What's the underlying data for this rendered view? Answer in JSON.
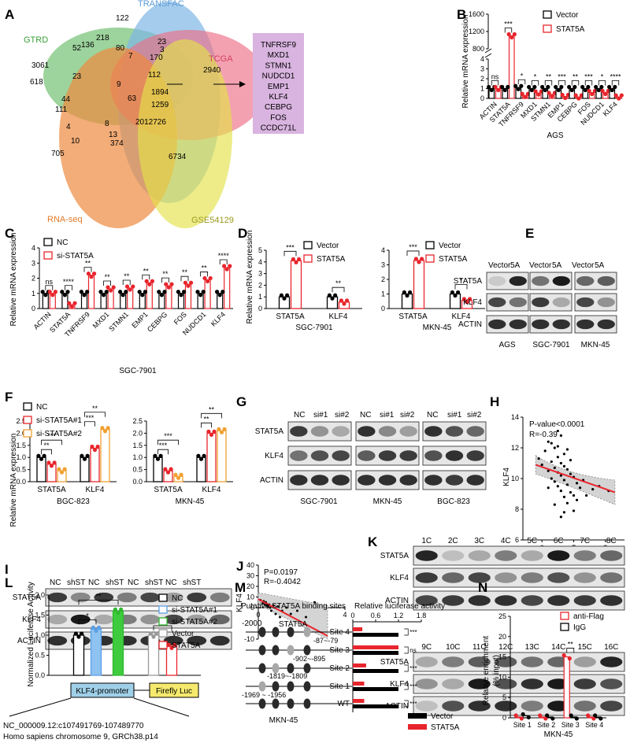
{
  "panels": {
    "A": {
      "letter": "A",
      "sets": [
        "TRANSFAC",
        "GTRD",
        "TCGA",
        "RNA-seq",
        "GSE54129"
      ],
      "numbers": [
        "122",
        "218",
        "23",
        "3",
        "52",
        "136",
        "80",
        "7",
        "170",
        "3061",
        "23",
        "2940",
        "618",
        "9",
        "112",
        "44",
        "1894",
        "111",
        "63",
        "1259",
        "4",
        "8",
        "2012726",
        "705",
        "10",
        "13",
        "374",
        "6734"
      ],
      "genes": [
        "TNFRSF9",
        "MXD1",
        "STMN1",
        "NUDCD1",
        "EMP1",
        "KLF4",
        "CEBPG",
        "FOS",
        "CCDC71L"
      ]
    },
    "B": {
      "letter": "B",
      "ylabel": "Relative mRNA expression",
      "yticks": [
        "0",
        "1",
        "2",
        "3",
        "4",
        "800",
        "1200",
        "1600"
      ],
      "legend": [
        "Vector",
        "STAT5A"
      ],
      "sigs": [
        "ns",
        "***",
        "*",
        "*",
        "**",
        "***",
        "**",
        "***",
        "*",
        "****"
      ],
      "cell": "AGS"
    },
    "C": {
      "letter": "C",
      "ylabel": "Relative mRNA expression",
      "yticks": [
        "0",
        "1",
        "2",
        "3",
        "4"
      ],
      "legend": [
        "NC",
        "si-STAT5A"
      ],
      "sigs": [
        "ns",
        "****",
        "**",
        "**",
        "**",
        "**",
        "**",
        "**",
        "**",
        "****"
      ],
      "cell": "SGC-7901"
    },
    "D": {
      "letter": "D",
      "ylabel": "Relative mRNA expression",
      "legend": [
        "Vector",
        "STAT5A"
      ],
      "left": {
        "cell": "SGC-7901",
        "yticks": [
          "0",
          "1",
          "2",
          "3",
          "4",
          "5"
        ],
        "sigs": [
          "***",
          "**"
        ]
      },
      "right": {
        "cell": "MKN-45",
        "yticks": [
          "0",
          "1",
          "2",
          "3",
          "4"
        ],
        "sigs": [
          "***",
          "*"
        ]
      }
    },
    "E": {
      "letter": "E",
      "headers": [
        "Vector",
        "5A",
        "Vector",
        "5A",
        "Vector",
        "5A"
      ],
      "rows": [
        "STAT5A",
        "KLF4",
        "ACTIN"
      ],
      "cells": [
        "AGS",
        "SGC-7901",
        "MKN-45"
      ]
    },
    "F": {
      "letter": "F",
      "ylabel": "Relative mRNA expression",
      "legend": [
        "NC",
        "si-STAT5A#1",
        "si-STAT5A#2"
      ],
      "left": {
        "cell": "BGC-823",
        "yticks": [
          "0.0",
          "0.5",
          "1.0",
          "1.5",
          "2.0",
          "2.5"
        ],
        "sigs": [
          "**",
          "***",
          "***",
          "**"
        ]
      },
      "right": {
        "cell": "MKN-45",
        "yticks": [
          "0.0",
          "0.5",
          "1.0",
          "1.5",
          "2.0",
          "2.5"
        ],
        "sigs": [
          "***",
          "***",
          "**",
          "**"
        ]
      }
    },
    "G": {
      "letter": "G",
      "headers": [
        "NC",
        "si#1",
        "si#2",
        "NC",
        "si#1",
        "si#2",
        "NC",
        "si#1",
        "si#2"
      ],
      "rows": [
        "STAT5A",
        "KLF4",
        "ACTIN"
      ],
      "cells": [
        "SGC-7901",
        "MKN-45",
        "BGC-823"
      ]
    },
    "H": {
      "letter": "H",
      "stat1": "P-value<0.0001",
      "stat2": "R=-0.39",
      "ylabel": "KLF4",
      "xlabel": "STAT5A",
      "xticks": [
        "6",
        "7",
        "8"
      ],
      "yticks": [
        "6",
        "8",
        "10",
        "12",
        "14"
      ]
    },
    "I": {
      "letter": "I",
      "headers": [
        "NC",
        "shST",
        "NC",
        "shST",
        "NC",
        "shST",
        "NC",
        "shST"
      ],
      "rows": [
        "STAT5A",
        "KLF4",
        "ACTIN"
      ]
    },
    "J": {
      "letter": "J",
      "stat1": "P=0.0197",
      "stat2": "R=-0.4042",
      "ylabel": "KLF4",
      "xlabel": "STAT5A",
      "yticks": [
        "40",
        "30",
        "20",
        "10",
        "0",
        "-10"
      ],
      "xticks": [
        "0",
        "1",
        "2",
        "3",
        "4"
      ]
    },
    "K": {
      "letter": "K",
      "headers_top": [
        "1C",
        "2C",
        "3C",
        "4C",
        "5C",
        "6C",
        "7C",
        "8C"
      ],
      "headers_bottom": [
        "9C",
        "10C",
        "11C",
        "12C",
        "13C",
        "14C",
        "15C",
        "16C"
      ],
      "rows": [
        "STAT5A",
        "KLF4",
        "ACTIN"
      ]
    },
    "L": {
      "letter": "L",
      "ylabel": "Normalized Luciferase Activity",
      "yticks": [
        "0.0",
        "0.5",
        "1.0",
        "1.5",
        "2.0"
      ],
      "legend": [
        "NC",
        "si-STAT5A#1",
        "si-STAT5A#2",
        "Vector",
        "STAT5A"
      ],
      "sigs": [
        "**",
        "*",
        "*"
      ],
      "promoter": "KLF4-promoter",
      "luc": "Firefly Luc",
      "locus": "NC_000009.12:c107491769-107489770",
      "assembly": "Homo sapiens chromosome 9, GRCh38.p14"
    },
    "M": {
      "letter": "M",
      "title_left": "Putative STAT5A binding sites",
      "title_right": "Relative luciferase activity",
      "start": "-2000",
      "sites": [
        "Site 4",
        "Site 3",
        "Site 2",
        "Site 1",
        "WT"
      ],
      "positions": [
        "-87~-79",
        "-902~-895",
        "-1819~-1809",
        "-1969 ~ -1956"
      ],
      "xticks": [
        "0",
        "0.6",
        "1.2",
        "1.8"
      ],
      "sigs": [
        "***",
        "ns",
        "***",
        "***",
        "***"
      ],
      "legend": [
        "Vector",
        "STAT5A"
      ],
      "cell": "MKN-45"
    },
    "N": {
      "letter": "N",
      "ylabel": "Relative enrichment\n(% input)",
      "yticks": [
        "0",
        "5",
        "10",
        "15",
        "20",
        "25"
      ],
      "legend": [
        "anti-Flag",
        "IgG"
      ],
      "sig": "**",
      "sites": [
        "Site 1",
        "Site 2",
        "Site 3",
        "Site 4"
      ],
      "cell": "MKN-45"
    }
  },
  "chart_data": [
    {
      "panel": "B",
      "type": "bar",
      "categories": [
        "ACTIN",
        "STAT5A",
        "TNFRSF9",
        "MXD1",
        "STMN1",
        "EMP1",
        "CEBPG",
        "FOS",
        "NUDCD1",
        "KLF4"
      ],
      "series": [
        {
          "name": "Vector",
          "values": [
            1,
            1,
            1.1,
            1,
            1,
            1,
            1,
            1,
            1,
            1
          ]
        },
        {
          "name": "STAT5A",
          "values": [
            1,
            1100,
            0.3,
            0.55,
            0.4,
            0.2,
            0.15,
            0.6,
            0.6,
            0.15
          ]
        }
      ],
      "ylabel": "Relative mRNA expression",
      "xlabel": "AGS",
      "axis_break": [
        4,
        800
      ]
    },
    {
      "panel": "C",
      "type": "bar",
      "categories": [
        "ACTIN",
        "STAT5A",
        "TNFRSF9",
        "MXD1",
        "STMN1",
        "EMP1",
        "CEBPG",
        "FOS",
        "NUDCD1",
        "KLF4"
      ],
      "series": [
        {
          "name": "NC",
          "values": [
            1,
            1,
            1,
            1,
            1,
            1,
            1,
            1,
            1,
            1
          ]
        },
        {
          "name": "si-STAT5A",
          "values": [
            1,
            0.25,
            2.2,
            1.3,
            1.35,
            1.7,
            1.5,
            1.6,
            1.9,
            2.7
          ]
        }
      ],
      "ylabel": "Relative mRNA expression",
      "xlabel": "SGC-7901",
      "ylim": [
        0,
        4
      ]
    },
    {
      "panel": "D-left",
      "type": "bar",
      "categories": [
        "STAT5A",
        "KLF4"
      ],
      "series": [
        {
          "name": "Vector",
          "values": [
            1,
            1
          ]
        },
        {
          "name": "STAT5A",
          "values": [
            4.1,
            0.55
          ]
        }
      ],
      "ylabel": "Relative mRNA expression",
      "xlabel": "SGC-7901",
      "ylim": [
        0,
        5
      ]
    },
    {
      "panel": "D-right",
      "type": "bar",
      "categories": [
        "STAT5A",
        "KLF4"
      ],
      "series": [
        {
          "name": "Vector",
          "values": [
            1,
            1
          ]
        },
        {
          "name": "STAT5A",
          "values": [
            3.3,
            0.55
          ]
        }
      ],
      "xlabel": "MKN-45",
      "ylim": [
        0,
        4
      ]
    },
    {
      "panel": "F-left",
      "type": "bar",
      "categories": [
        "STAT5A",
        "KLF4"
      ],
      "series": [
        {
          "name": "NC",
          "values": [
            1.0,
            1.0
          ]
        },
        {
          "name": "si-STAT5A#1",
          "values": [
            0.72,
            1.38
          ]
        },
        {
          "name": "si-STAT5A#2",
          "values": [
            0.45,
            2.15
          ]
        }
      ],
      "ylabel": "Relative mRNA expression",
      "xlabel": "BGC-823",
      "ylim": [
        0,
        2.5
      ]
    },
    {
      "panel": "F-right",
      "type": "bar",
      "categories": [
        "STAT5A",
        "KLF4"
      ],
      "series": [
        {
          "name": "NC",
          "values": [
            1.0,
            1.0
          ]
        },
        {
          "name": "si-STAT5A#1",
          "values": [
            0.45,
            2.0
          ]
        },
        {
          "name": "si-STAT5A#2",
          "values": [
            0.22,
            2.1
          ]
        }
      ],
      "xlabel": "MKN-45",
      "ylim": [
        0,
        2.5
      ]
    },
    {
      "panel": "H",
      "type": "scatter",
      "xlabel": "STAT5A",
      "ylabel": "KLF4",
      "xlim": [
        5.4,
        8.6
      ],
      "ylim": [
        6,
        14
      ],
      "fit": {
        "x": [
          5.8,
          8.3
        ],
        "y": [
          10.9,
          9.1
        ]
      },
      "x": [
        5.9,
        6.0,
        6.1,
        6.2,
        6.2,
        6.3,
        6.3,
        6.4,
        6.4,
        6.4,
        6.5,
        6.5,
        6.5,
        6.6,
        6.6,
        6.6,
        6.6,
        6.7,
        6.7,
        6.7,
        6.7,
        6.8,
        6.8,
        6.8,
        6.9,
        6.9,
        7.0,
        7.0,
        7.1,
        7.1,
        7.2,
        7.3,
        7.4,
        7.6,
        7.8,
        8.1,
        6.3,
        6.5,
        6.7,
        6.9,
        6.4,
        6.6,
        6.8,
        7.0,
        6.2,
        6.5
      ],
      "y": [
        11.3,
        10.9,
        11.8,
        10.5,
        12.4,
        11.1,
        10.0,
        12.0,
        10.7,
        9.8,
        11.4,
        10.4,
        9.5,
        12.8,
        11.0,
        10.2,
        9.2,
        11.6,
        10.8,
        9.9,
        8.8,
        10.6,
        9.6,
        8.4,
        10.3,
        9.1,
        10.1,
        8.9,
        9.7,
        8.6,
        9.4,
        9.9,
        8.9,
        9.3,
        9.5,
        9.2,
        12.3,
        12.1,
        7.8,
        11.2,
        8.3,
        7.5,
        11.9,
        7.9,
        9.4,
        13.1
      ]
    },
    {
      "panel": "J",
      "type": "scatter",
      "xlabel": "STAT5A",
      "ylabel": "KLF4",
      "xlim": [
        0,
        4
      ],
      "ylim": [
        -10,
        40
      ],
      "fit": {
        "x": [
          0,
          3.2
        ],
        "y": [
          8,
          -9
        ]
      },
      "x": [
        0.1,
        0.2,
        0.25,
        0.3,
        0.35,
        0.4,
        0.45,
        0.5,
        0.55,
        0.6,
        0.7,
        0.8,
        0.9,
        1.0,
        1.1,
        1.3,
        1.5,
        1.8,
        2.2,
        2.6
      ],
      "y": [
        7,
        4,
        6,
        3,
        5,
        2,
        1,
        3,
        0,
        -1,
        2,
        -2,
        1,
        -3,
        -1,
        0,
        -2,
        -1,
        -3,
        5
      ]
    },
    {
      "panel": "L",
      "type": "bar",
      "categories": [
        "NC",
        "si-STAT5A#1",
        "si-STAT5A#2",
        "Vector",
        "STAT5A"
      ],
      "values": [
        1.0,
        1.15,
        1.6,
        1.0,
        0.72
      ],
      "ylabel": "Normalized Luciferase Activity",
      "ylim": [
        0,
        2.0
      ]
    },
    {
      "panel": "M",
      "type": "bar",
      "categories": [
        "Site 4",
        "Site 3",
        "Site 2",
        "Site 1",
        "WT"
      ],
      "series": [
        {
          "name": "Vector",
          "values": [
            1.2,
            1.2,
            1.2,
            1.2,
            1.2
          ]
        },
        {
          "name": "STAT5A",
          "values": [
            0.25,
            1.2,
            0.35,
            0.3,
            0.3
          ]
        }
      ],
      "xlabel": "Relative luciferase activity",
      "xlim": [
        0,
        1.8
      ],
      "orientation": "horizontal"
    },
    {
      "panel": "N",
      "type": "bar",
      "categories": [
        "Site 1",
        "Site 2",
        "Site 3",
        "Site 4"
      ],
      "series": [
        {
          "name": "anti-Flag",
          "values": [
            0.2,
            0.2,
            15,
            0.2
          ]
        },
        {
          "name": "IgG",
          "values": [
            0.5,
            0.2,
            0.2,
            0.2
          ]
        }
      ],
      "ylabel": "Relative enrichment (% input)",
      "ylim": [
        0,
        25
      ]
    }
  ]
}
